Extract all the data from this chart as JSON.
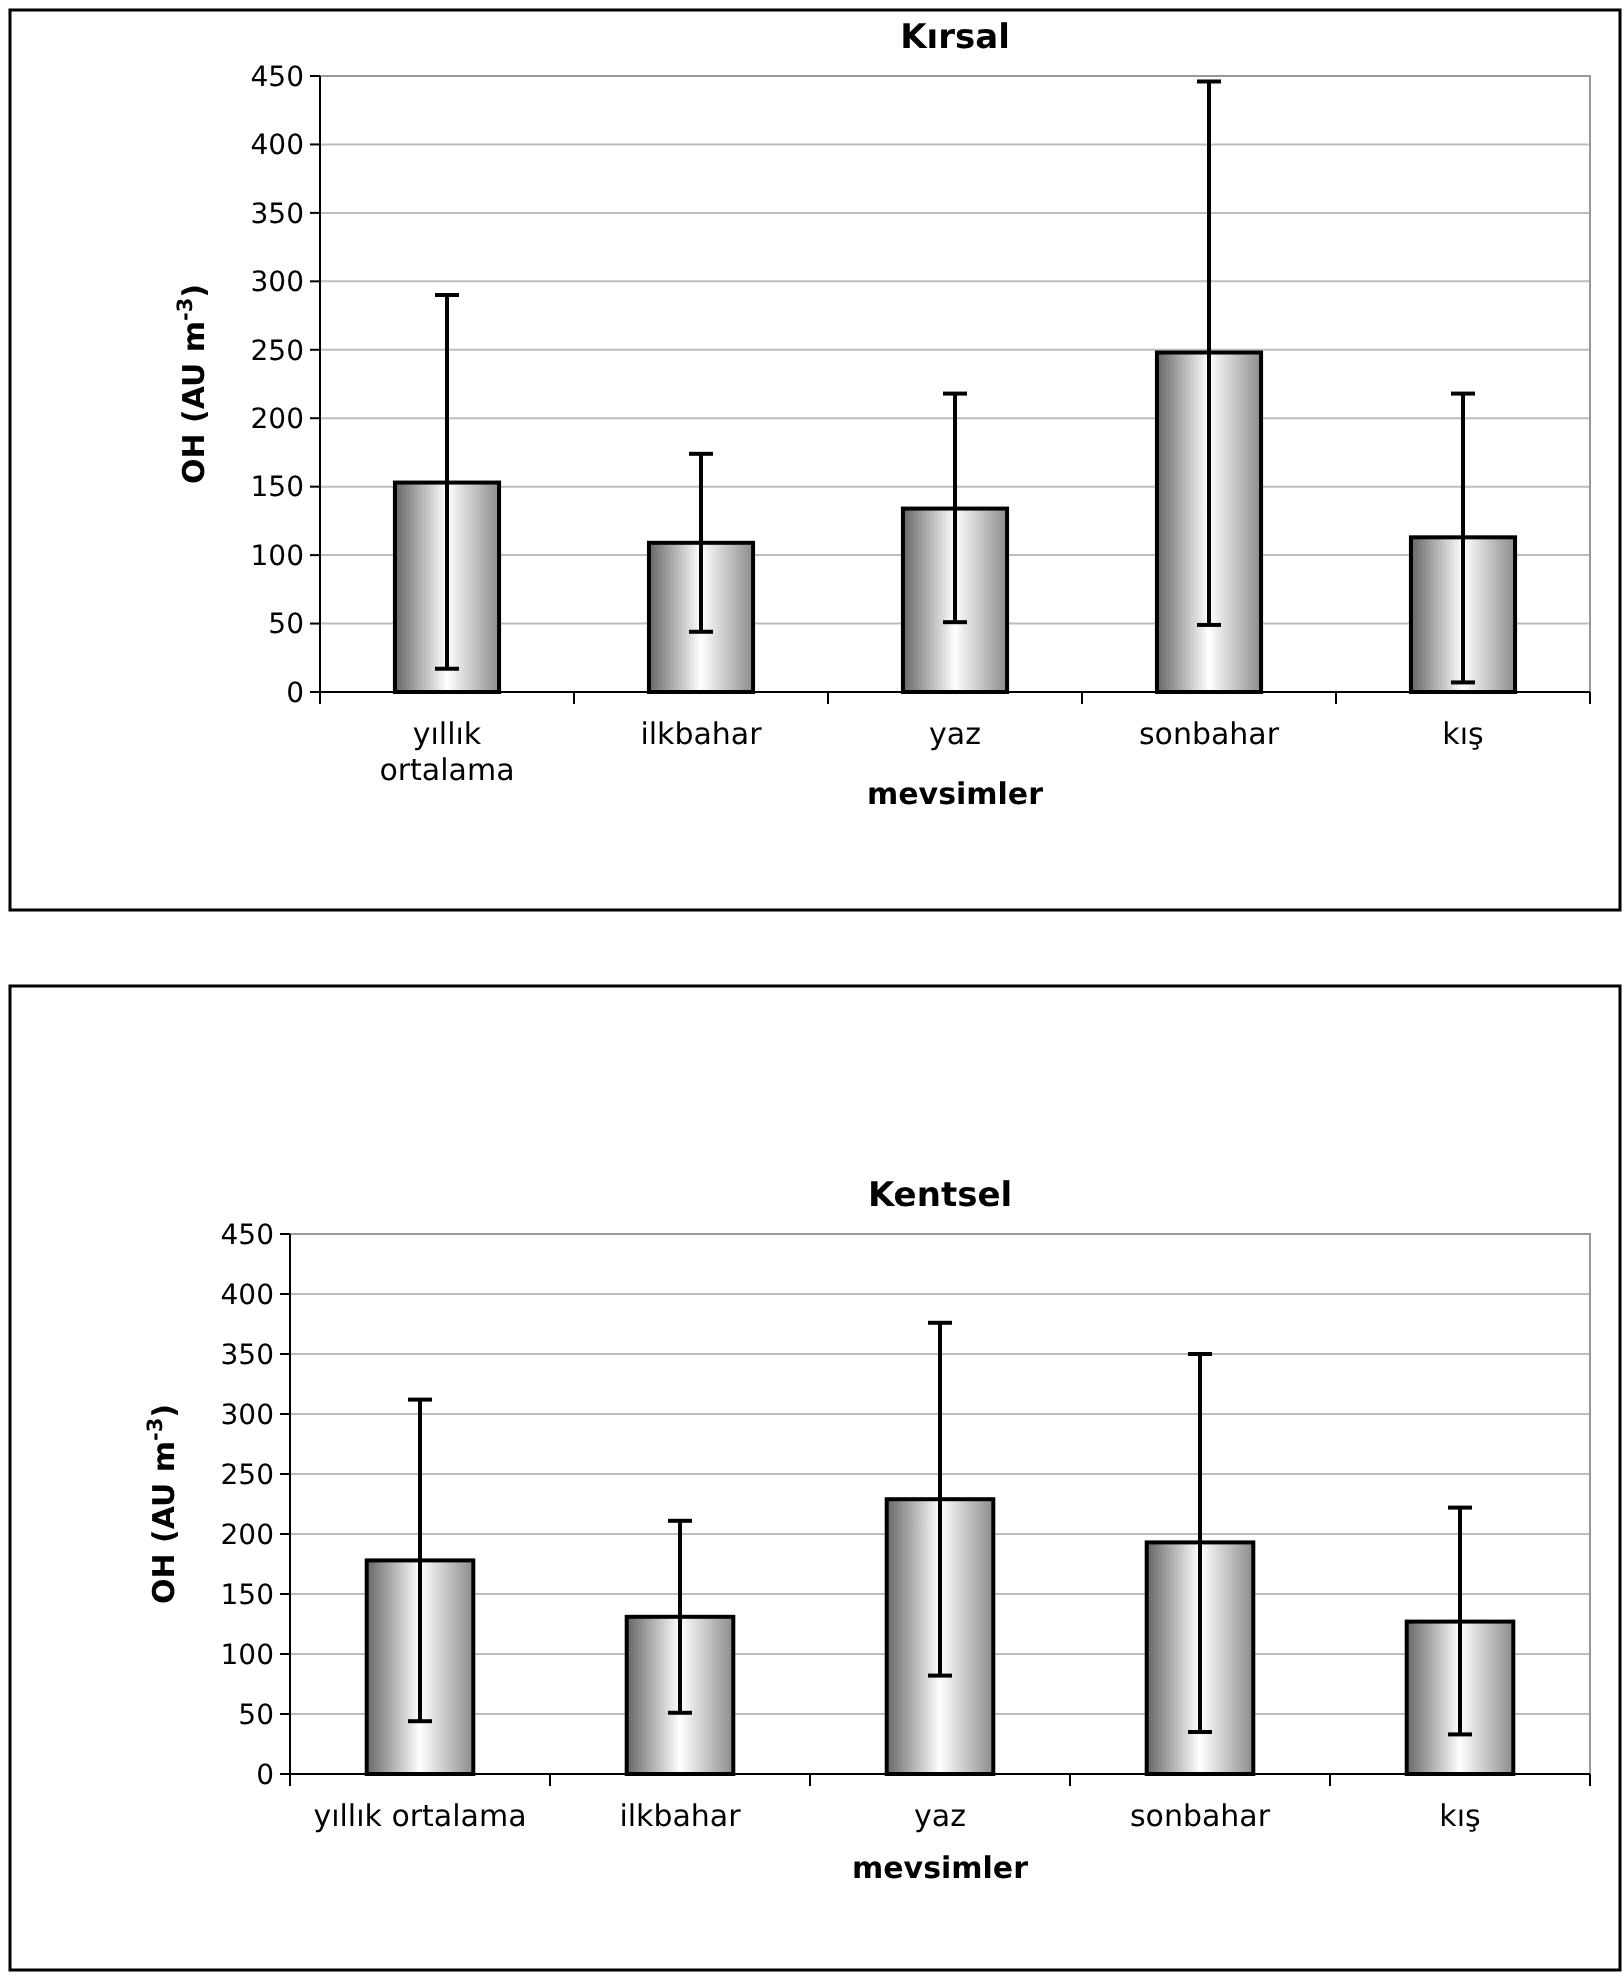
{
  "chart_data": [
    {
      "type": "bar",
      "title": "Kırsal",
      "xlabel": "mevsimler",
      "ylabel": "OH  (AU m$^{-3}$)",
      "categories": [
        "yıllık ortalama",
        "ilkbahar",
        "yaz",
        "sonbahar",
        "kış"
      ],
      "values": [
        153,
        109,
        134,
        248,
        113
      ],
      "errors": [
        [
          17,
          290
        ],
        [
          44,
          174
        ],
        [
          51,
          218
        ],
        [
          49,
          446
        ],
        [
          7,
          218
        ]
      ],
      "color": "#000000",
      "ylim": [
        0,
        450
      ],
      "yticks": [
        0,
        50,
        100,
        150,
        200,
        250,
        300,
        350,
        400,
        450
      ],
      "grid": "y"
    },
    {
      "type": "bar",
      "title": "Kentsel",
      "xlabel": "mevsimler",
      "ylabel": "OH  (AU m$^{-3}$)",
      "categories": [
        "yıllık ortalama",
        "ilkbahar",
        "yaz",
        "sonbahar",
        "kış"
      ],
      "values": [
        178,
        131,
        229,
        193,
        127
      ],
      "errors": [
        [
          44,
          312
        ],
        [
          51,
          211
        ],
        [
          82,
          376
        ],
        [
          35,
          350
        ],
        [
          33,
          222
        ]
      ],
      "color": "#000000",
      "ylim": [
        0,
        450
      ],
      "yticks": [
        0,
        50,
        100,
        150,
        200,
        250,
        300,
        350,
        400,
        450
      ],
      "grid": "y"
    }
  ]
}
